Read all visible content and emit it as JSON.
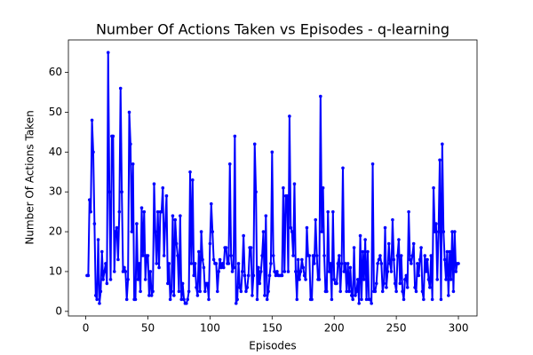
{
  "chart_data": {
    "type": "line",
    "title": "Number Of Actions Taken vs Episodes - q-learning",
    "x_label": "Episodes",
    "y_label": "Number Of Actions Taken",
    "xlim": [
      -14,
      315
    ],
    "ylim": [
      -1.15,
      68.15
    ],
    "xticks": [
      0,
      50,
      100,
      150,
      200,
      250,
      300
    ],
    "yticks": [
      0,
      10,
      20,
      30,
      40,
      50,
      60
    ],
    "x": [
      1,
      2,
      3,
      4,
      5,
      6,
      7,
      8,
      9,
      10,
      11,
      12,
      13,
      14,
      15,
      16,
      17,
      18,
      19,
      20,
      21,
      22,
      23,
      24,
      25,
      26,
      27,
      28,
      29,
      30,
      31,
      32,
      33,
      34,
      35,
      36,
      37,
      38,
      39,
      40,
      41,
      42,
      43,
      44,
      45,
      46,
      47,
      48,
      49,
      50,
      51,
      52,
      53,
      54,
      55,
      56,
      57,
      58,
      59,
      60,
      61,
      62,
      63,
      64,
      65,
      66,
      67,
      68,
      69,
      70,
      71,
      72,
      73,
      74,
      75,
      76,
      77,
      78,
      79,
      80,
      81,
      82,
      83,
      84,
      85,
      86,
      87,
      88,
      89,
      90,
      91,
      92,
      93,
      94,
      95,
      96,
      97,
      98,
      99,
      100,
      101,
      102,
      103,
      104,
      105,
      106,
      107,
      108,
      109,
      110,
      111,
      112,
      113,
      114,
      115,
      116,
      117,
      118,
      119,
      120,
      121,
      122,
      123,
      124,
      125,
      126,
      127,
      128,
      129,
      130,
      131,
      132,
      133,
      134,
      135,
      136,
      137,
      138,
      139,
      140,
      141,
      142,
      143,
      144,
      145,
      146,
      147,
      148,
      149,
      150,
      151,
      152,
      153,
      154,
      155,
      156,
      157,
      158,
      159,
      160,
      161,
      162,
      163,
      164,
      165,
      166,
      167,
      168,
      169,
      170,
      171,
      172,
      173,
      174,
      175,
      176,
      177,
      178,
      179,
      180,
      181,
      182,
      183,
      184,
      185,
      186,
      187,
      188,
      189,
      190,
      191,
      192,
      193,
      194,
      195,
      196,
      197,
      198,
      199,
      200,
      201,
      202,
      203,
      204,
      205,
      206,
      207,
      208,
      209,
      210,
      211,
      212,
      213,
      214,
      215,
      216,
      217,
      218,
      219,
      220,
      221,
      222,
      223,
      224,
      225,
      226,
      227,
      228,
      229,
      230,
      231,
      232,
      233,
      234,
      235,
      236,
      237,
      238,
      239,
      240,
      241,
      242,
      243,
      244,
      245,
      246,
      247,
      248,
      249,
      250,
      251,
      252,
      253,
      254,
      255,
      256,
      257,
      258,
      259,
      260,
      261,
      262,
      263,
      264,
      265,
      266,
      267,
      268,
      269,
      270,
      271,
      272,
      273,
      274,
      275,
      276,
      277,
      278,
      279,
      280,
      281,
      282,
      283,
      284,
      285,
      286,
      287,
      288,
      289,
      290,
      291,
      292,
      293,
      294,
      295,
      296,
      297,
      298,
      299,
      300
    ],
    "series": [
      {
        "color": "#0000ff",
        "values": [
          9,
          9,
          28,
          25,
          48,
          40,
          22,
          4,
          3,
          18,
          2,
          5,
          15,
          8,
          10,
          12,
          7,
          65,
          30,
          8,
          44,
          44,
          10,
          20,
          21,
          13,
          25,
          56,
          30,
          10,
          11,
          10,
          3,
          8,
          50,
          42,
          20,
          37,
          3,
          3,
          22,
          8,
          12,
          5,
          26,
          14,
          25,
          8,
          14,
          14,
          4,
          10,
          4,
          5,
          32,
          20,
          12,
          25,
          11,
          25,
          25,
          31,
          14,
          22,
          29,
          7,
          12,
          3,
          5,
          24,
          4,
          23,
          17,
          14,
          5,
          24,
          3,
          7,
          3,
          2,
          2,
          3,
          5,
          35,
          12,
          33,
          9,
          12,
          6,
          4,
          15,
          5,
          20,
          13,
          11,
          5,
          7,
          7,
          3,
          17,
          27,
          20,
          13,
          12,
          12,
          5,
          10,
          13,
          11,
          12,
          11,
          16,
          16,
          12,
          12,
          37,
          14,
          10,
          11,
          44,
          2,
          3,
          12,
          6,
          5,
          10,
          19,
          9,
          5,
          6,
          9,
          16,
          16,
          4,
          9,
          42,
          30,
          3,
          11,
          7,
          10,
          14,
          20,
          4,
          24,
          3,
          5,
          9,
          12,
          40,
          14,
          10,
          9,
          10,
          9,
          9,
          9,
          9,
          31,
          10,
          29,
          29,
          10,
          49,
          21,
          20,
          14,
          32,
          10,
          3,
          13,
          8,
          10,
          13,
          11,
          9,
          8,
          21,
          14,
          14,
          3,
          3,
          14,
          12,
          23,
          14,
          8,
          8,
          54,
          20,
          31,
          14,
          5,
          5,
          25,
          10,
          12,
          3,
          25,
          8,
          7,
          7,
          12,
          14,
          5,
          12,
          36,
          10,
          12,
          5,
          12,
          5,
          11,
          4,
          3,
          16,
          4,
          5,
          8,
          2,
          19,
          3,
          15,
          8,
          18,
          3,
          15,
          3,
          3,
          2,
          37,
          5,
          5,
          7,
          12,
          13,
          14,
          12,
          5,
          7,
          21,
          6,
          10,
          17,
          12,
          10,
          23,
          13,
          7,
          5,
          14,
          18,
          7,
          14,
          5,
          3,
          8,
          9,
          6,
          25,
          13,
          12,
          14,
          17,
          6,
          5,
          12,
          9,
          13,
          16,
          5,
          3,
          14,
          10,
          13,
          8,
          6,
          14,
          3,
          31,
          20,
          22,
          8,
          20,
          38,
          3,
          42,
          20,
          13,
          8,
          15,
          4,
          15,
          8,
          20,
          5,
          20,
          10,
          12,
          12
        ]
      }
    ]
  }
}
